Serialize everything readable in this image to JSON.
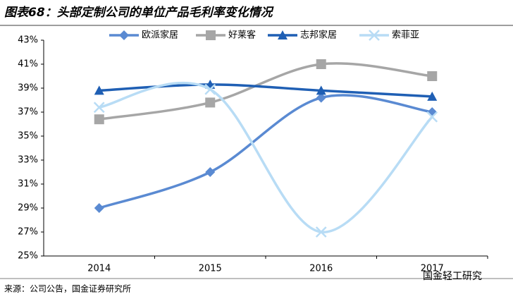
{
  "chart_data": {
    "type": "line",
    "title": "图表68：头部定制公司的单位产品毛利率变化情况",
    "source": "来源：公司公告，国金证券研究所",
    "watermark": "国金轻工研究",
    "categories": [
      "2014",
      "2015",
      "2016",
      "2017"
    ],
    "series": [
      {
        "name": "欧派家居",
        "color": "#5a8ad2",
        "marker": "diamond",
        "values": [
          29.0,
          32.0,
          38.2,
          37.0
        ]
      },
      {
        "name": "好莱客",
        "color": "#a6a6a6",
        "marker": "square",
        "values": [
          36.4,
          37.8,
          41.0,
          40.0
        ]
      },
      {
        "name": "志邦家居",
        "color": "#1f5fb4",
        "marker": "triangle",
        "values": [
          38.8,
          39.3,
          38.8,
          38.3
        ]
      },
      {
        "name": "索菲亚",
        "color": "#b8dcf5",
        "marker": "x",
        "values": [
          37.4,
          38.9,
          27.0,
          36.6
        ]
      }
    ],
    "ylim": [
      25,
      43
    ],
    "yticks": [
      {
        "value": 25,
        "label": "25%"
      },
      {
        "value": 27,
        "label": "27%"
      },
      {
        "value": 29,
        "label": "29%"
      },
      {
        "value": 31,
        "label": "31%"
      },
      {
        "value": 33,
        "label": "33%"
      },
      {
        "value": 35,
        "label": "35%"
      },
      {
        "value": 37,
        "label": "37%"
      },
      {
        "value": 39,
        "label": "39%"
      },
      {
        "value": 41,
        "label": "41%"
      },
      {
        "value": 43,
        "label": "43%"
      }
    ],
    "smooth": true,
    "grid": false,
    "legend": "top"
  }
}
